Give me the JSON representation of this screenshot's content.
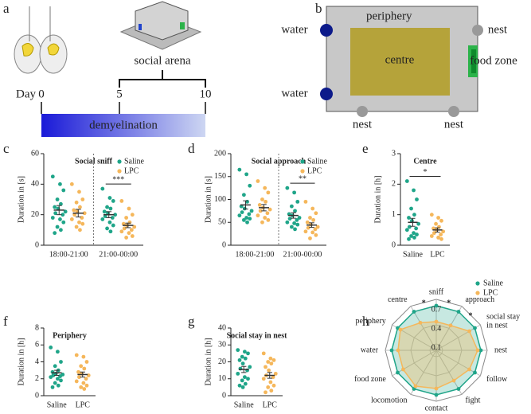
{
  "panel_labels": [
    "a",
    "b",
    "c",
    "d",
    "e",
    "f",
    "g",
    "h"
  ],
  "timeline": {
    "label": "Day",
    "ticks": [
      "0",
      "5",
      "10"
    ],
    "bar": "demyelination",
    "bracket": "social arena"
  },
  "arena": {
    "periphery": "periphery",
    "centre": "centre",
    "water": [
      "water",
      "water"
    ],
    "nest": [
      "nest",
      "nest",
      "nest"
    ],
    "food": "food zone"
  },
  "chart_data": [
    {
      "type": "strip",
      "title": "Social sniff",
      "ylabel": "Duration in [s]",
      "categories": [
        "18:00-21:00",
        "21:00-00:00"
      ],
      "ylim": [
        0,
        60
      ],
      "yticks": [
        0,
        20,
        40,
        60
      ],
      "divider": true,
      "significance": [
        null,
        "***"
      ],
      "series": [
        {
          "name": "Saline",
          "color": "#1fa589",
          "values": [
            [
              45,
              40,
              36,
              30,
              27,
              25,
              24,
              22,
              21,
              20,
              18,
              17,
              15,
              12,
              10,
              8
            ],
            [
              37,
              31,
              29,
              25,
              24,
              22,
              21,
              20,
              19,
              18,
              17,
              15,
              13,
              11,
              9
            ]
          ],
          "mean": [
            23,
            20
          ],
          "sem": [
            3,
            2
          ]
        },
        {
          "name": "LPC",
          "color": "#f5b75b",
          "values": [
            [
              40,
              35,
              30,
              28,
              25,
              23,
              22,
              21,
              20,
              18,
              17,
              15,
              14,
              12,
              10
            ],
            [
              29,
              24,
              20,
              18,
              15,
              14,
              13,
              12,
              11,
              10,
              9,
              8,
              6,
              5
            ]
          ],
          "mean": [
            21,
            13
          ],
          "sem": [
            2.5,
            1.5
          ]
        }
      ]
    },
    {
      "type": "strip",
      "title": "Social approach",
      "ylabel": "Duration in [s]",
      "categories": [
        "18:00-21:00",
        "21:00-00:00"
      ],
      "ylim": [
        0,
        200
      ],
      "yticks": [
        0,
        50,
        100,
        150,
        200
      ],
      "divider": true,
      "significance": [
        null,
        "**"
      ],
      "series": [
        {
          "name": "Saline",
          "color": "#1fa589",
          "values": [
            [
              165,
              155,
              130,
              110,
              95,
              85,
              80,
              75,
              72,
              68,
              65,
              60,
              58,
              55,
              50
            ],
            [
              125,
              115,
              95,
              85,
              75,
              68,
              65,
              60,
              58,
              55,
              50,
              48,
              45,
              40,
              35
            ]
          ],
          "mean": [
            88,
            65
          ],
          "sem": [
            9,
            6
          ]
        },
        {
          "name": "LPC",
          "color": "#f5b75b",
          "values": [
            [
              140,
              125,
              115,
              100,
              95,
              88,
              82,
              78,
              75,
              70,
              65,
              60,
              55,
              50
            ],
            [
              95,
              80,
              70,
              60,
              55,
              50,
              45,
              40,
              38,
              35,
              30,
              28,
              22,
              15
            ]
          ],
          "mean": [
            82,
            44
          ],
          "sem": [
            7,
            5
          ]
        }
      ]
    },
    {
      "type": "strip",
      "title": "Centre",
      "ylabel": "Duration in [h]",
      "categories": [
        "Saline",
        "LPC"
      ],
      "colors": [
        "#1fa589",
        "#f5b75b"
      ],
      "ylim": [
        0,
        3
      ],
      "yticks": [
        0,
        1,
        2,
        3
      ],
      "significance": "*",
      "values": [
        [
          2.1,
          1.8,
          1.5,
          1.2,
          1.0,
          0.9,
          0.8,
          0.7,
          0.6,
          0.55,
          0.5,
          0.4,
          0.35,
          0.3,
          0.25,
          0.2
        ],
        [
          1.0,
          0.9,
          0.8,
          0.7,
          0.6,
          0.55,
          0.5,
          0.45,
          0.4,
          0.35,
          0.3,
          0.25,
          0.2
        ]
      ],
      "mean": [
        0.75,
        0.5
      ],
      "sem": [
        0.13,
        0.07
      ]
    },
    {
      "type": "strip",
      "title": "Periphery",
      "ylabel": "Duration in [h]",
      "categories": [
        "Saline",
        "LPC"
      ],
      "colors": [
        "#1fa589",
        "#f5b75b"
      ],
      "ylim": [
        0,
        8
      ],
      "yticks": [
        0,
        2,
        4,
        6,
        8
      ],
      "values": [
        [
          5.7,
          5.2,
          4.0,
          3.5,
          3.0,
          2.8,
          2.6,
          2.5,
          2.4,
          2.3,
          2.2,
          2.0,
          1.8,
          1.5,
          1.2,
          1.0
        ],
        [
          4.8,
          4.6,
          4.0,
          3.5,
          3.2,
          2.8,
          2.6,
          2.4,
          2.2,
          2.0,
          1.7,
          1.5,
          1.2,
          1.0,
          0.8
        ]
      ],
      "mean": [
        2.7,
        2.5
      ],
      "sem": [
        0.3,
        0.3
      ]
    },
    {
      "type": "strip",
      "title": "Social stay in nest",
      "ylabel": "Duration in [h]",
      "categories": [
        "Saline",
        "LPC"
      ],
      "colors": [
        "#1fa589",
        "#f5b75b"
      ],
      "ylim": [
        0,
        40
      ],
      "yticks": [
        0,
        10,
        20,
        30,
        40
      ],
      "values": [
        [
          27,
          26,
          25,
          23,
          22,
          21,
          19,
          17,
          16,
          15,
          13,
          11,
          10,
          9,
          7,
          6,
          5
        ],
        [
          25,
          22,
          21,
          20,
          19,
          17,
          15,
          13,
          12,
          11,
          10,
          8,
          6,
          5,
          3,
          2
        ]
      ],
      "mean": [
        15.5,
        12
      ],
      "sem": [
        1.8,
        1.7
      ]
    },
    {
      "type": "radar",
      "categories": [
        "sniff",
        "approach",
        "social stay in nest",
        "nest",
        "follow",
        "fight",
        "contact",
        "locomotion",
        "food zone",
        "water",
        "periphery",
        "centre"
      ],
      "rlim": [
        0,
        0.8
      ],
      "rticks": [
        0.1,
        0.4,
        0.7
      ],
      "significance": [
        "*",
        "*",
        null,
        null,
        null,
        null,
        null,
        null,
        null,
        null,
        null,
        "*"
      ],
      "series": [
        {
          "name": "Saline",
          "color": "#1fa589",
          "values": [
            0.7,
            0.7,
            0.7,
            0.7,
            0.7,
            0.7,
            0.7,
            0.7,
            0.7,
            0.7,
            0.7,
            0.7
          ]
        },
        {
          "name": "LPC",
          "color": "#f5b75b",
          "values": [
            0.45,
            0.45,
            0.6,
            0.65,
            0.6,
            0.55,
            0.6,
            0.65,
            0.6,
            0.6,
            0.65,
            0.5
          ]
        }
      ]
    }
  ]
}
